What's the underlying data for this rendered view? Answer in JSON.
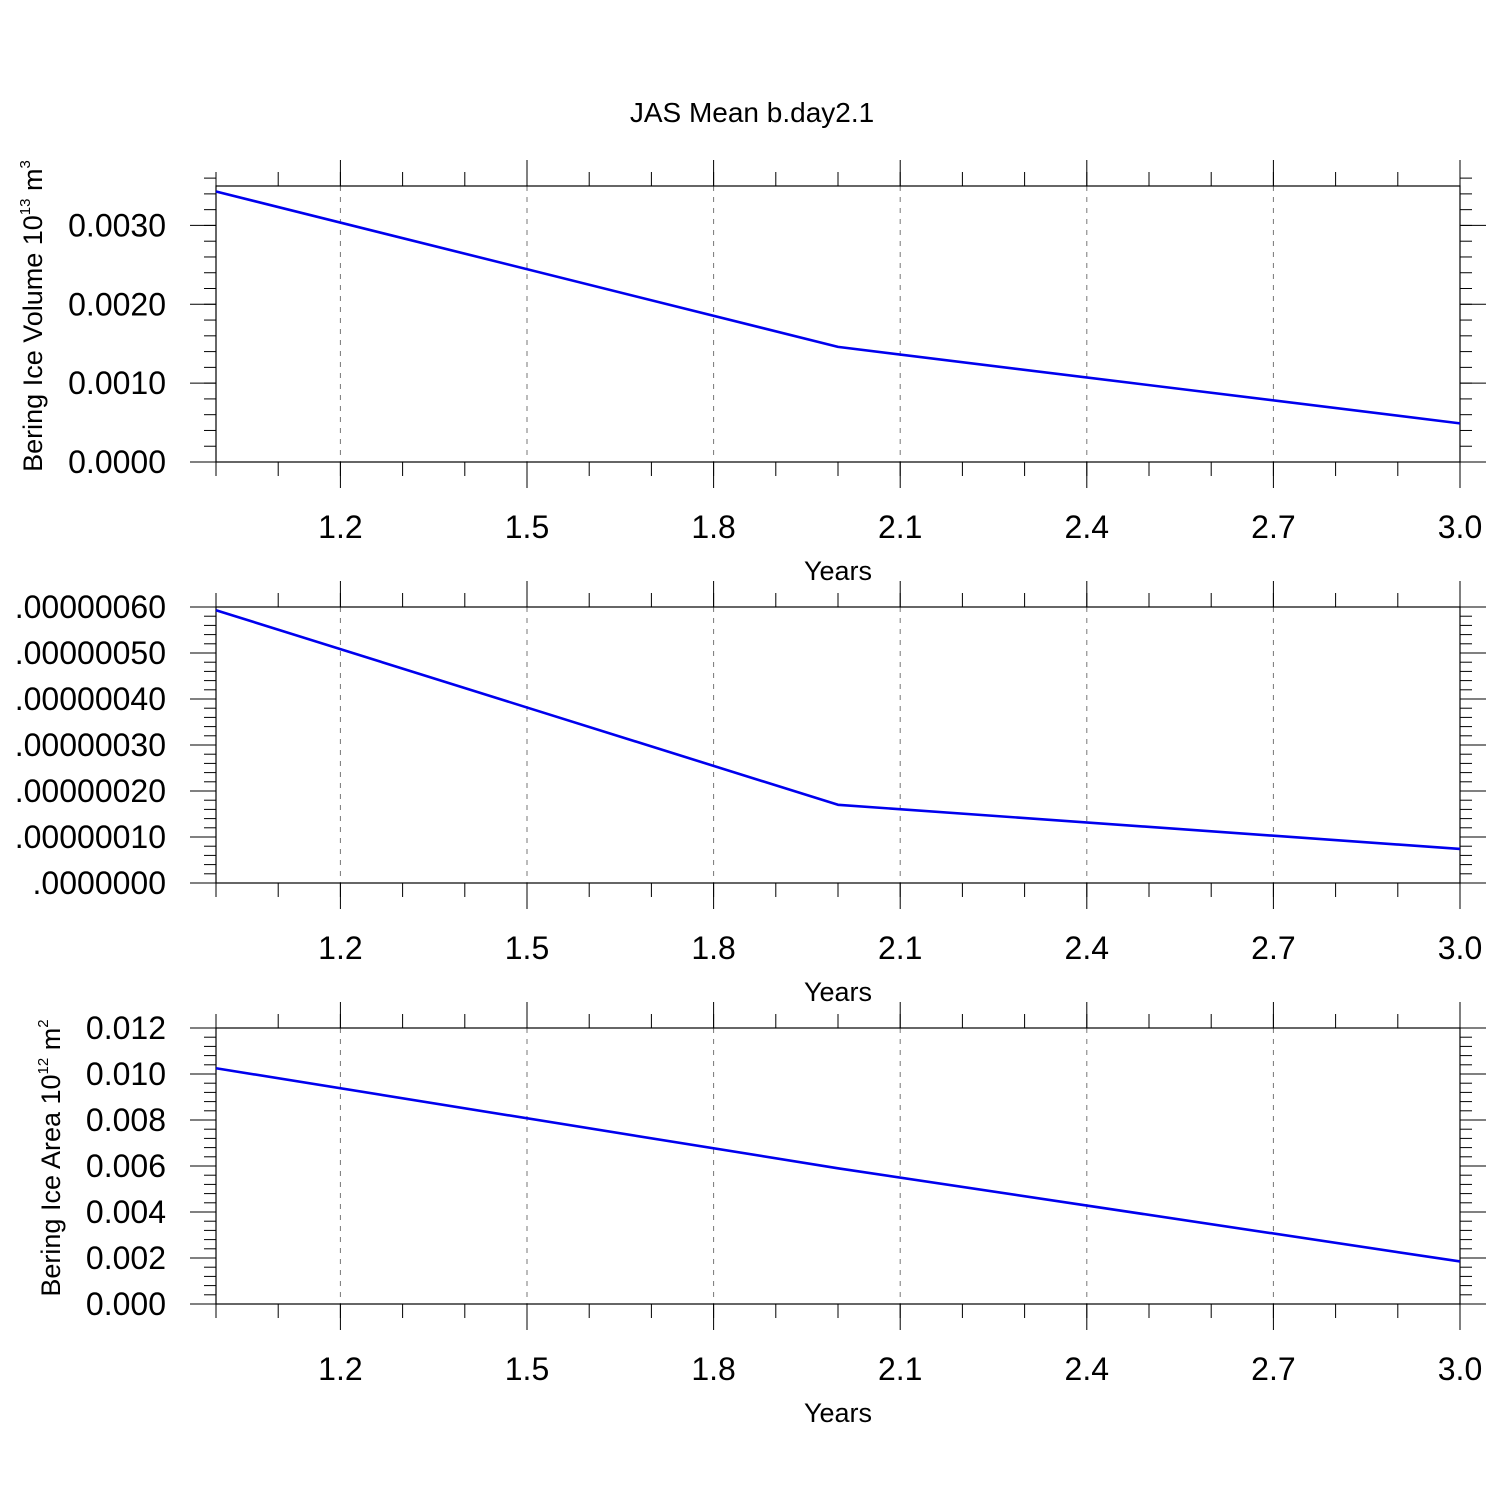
{
  "title": "JAS Mean b.day2.1",
  "chart_data": [
    {
      "type": "line",
      "ylabel": {
        "main": "Bering Ice Volume 10",
        "exp": "13",
        "unit": " m",
        "unit_exp": "3"
      },
      "xlabel": "Years",
      "x_ticks": [
        "1.2",
        "1.5",
        "1.8",
        "2.1",
        "2.4",
        "2.7",
        "3.0"
      ],
      "y_ticks": [
        "0.0000",
        "0.0010",
        "0.0020",
        "0.0030"
      ],
      "xlim": [
        1.0,
        3.0
      ],
      "ylim": [
        0,
        0.0035
      ],
      "y_major_step": 0.001,
      "y_minor_step": 0.0002,
      "x": [
        1,
        2,
        3
      ],
      "series": [
        {
          "values": [
            0.00343,
            0.00146,
            0.00049
          ],
          "color": "#0000ee"
        }
      ]
    },
    {
      "type": "line",
      "ylabel": {
        "main": "",
        "exp": "",
        "unit": "",
        "unit_exp": ""
      },
      "xlabel": "Years",
      "x_ticks": [
        "1.2",
        "1.5",
        "1.8",
        "2.1",
        "2.4",
        "2.7",
        "3.0"
      ],
      "y_ticks": [
        ".0000000",
        ".00000010",
        ".00000020",
        ".00000030",
        ".00000040",
        ".00000050",
        ".00000060"
      ],
      "xlim": [
        1.0,
        3.0
      ],
      "ylim": [
        0,
        6e-07
      ],
      "y_major_step": 1e-07,
      "y_minor_step": 2e-08,
      "x": [
        1,
        2,
        3
      ],
      "series": [
        {
          "values": [
            5.93e-07,
            1.7e-07,
            7.4e-08
          ],
          "color": "#0000ee"
        }
      ]
    },
    {
      "type": "line",
      "ylabel": {
        "main": "Bering Ice Area 10",
        "exp": "12",
        "unit": " m",
        "unit_exp": "2"
      },
      "xlabel": "Years",
      "x_ticks": [
        "1.2",
        "1.5",
        "1.8",
        "2.1",
        "2.4",
        "2.7",
        "3.0"
      ],
      "y_ticks": [
        "0.000",
        "0.002",
        "0.004",
        "0.006",
        "0.008",
        "0.010",
        "0.012"
      ],
      "xlim": [
        1.0,
        3.0
      ],
      "ylim": [
        0,
        0.012
      ],
      "y_major_step": 0.002,
      "y_minor_step": 0.0004,
      "x": [
        1,
        2,
        3
      ],
      "series": [
        {
          "values": [
            0.01025,
            0.0059,
            0.00185
          ],
          "color": "#0000ee"
        }
      ]
    }
  ]
}
